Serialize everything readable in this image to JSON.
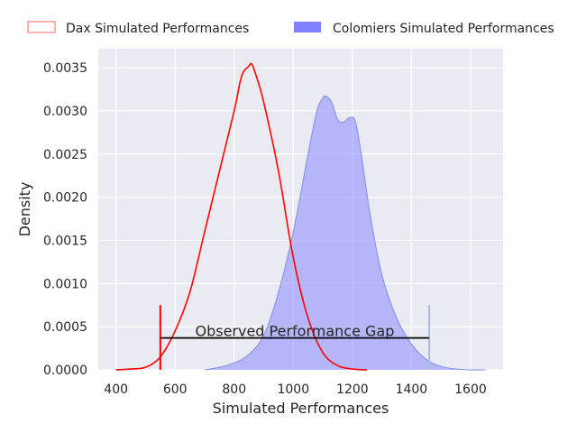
{
  "chart_data": {
    "type": "area",
    "xlabel": "Simulated Performances",
    "ylabel": "Density",
    "xlim": [
      340,
      1710
    ],
    "ylim": [
      0,
      0.00372
    ],
    "x_ticks": [
      400,
      600,
      800,
      1000,
      1200,
      1400,
      1600
    ],
    "x_tick_labels": [
      "400",
      "600",
      "800",
      "1000",
      "1200",
      "1400",
      "1600"
    ],
    "y_ticks": [
      0,
      0.0005,
      0.001,
      0.0015,
      0.002,
      0.0025,
      0.003,
      0.0035
    ],
    "y_tick_labels": [
      "0.0000",
      "0.0005",
      "0.0010",
      "0.0015",
      "0.0020",
      "0.0025",
      "0.0030",
      "0.0035"
    ],
    "grid": true,
    "legend_position": "top",
    "series": [
      {
        "name": "Dax Simulated Performances",
        "color": "#ff0000",
        "style": "outline",
        "x": [
          400,
          450,
          500,
          550,
          600,
          650,
          700,
          750,
          800,
          825,
          850,
          860,
          875,
          900,
          950,
          1000,
          1050,
          1100,
          1150,
          1200,
          1250
        ],
        "y": [
          0.0,
          1e-05,
          3e-05,
          0.00015,
          0.00045,
          0.0009,
          0.0016,
          0.0023,
          0.003,
          0.0034,
          0.00352,
          0.00354,
          0.0034,
          0.0031,
          0.0023,
          0.0013,
          0.0006,
          0.0002,
          5e-05,
          1e-05,
          0.0
        ]
      },
      {
        "name": "Colomiers Simulated Performances",
        "color": "#8080ff",
        "style": "filled",
        "x": [
          700,
          750,
          800,
          850,
          900,
          950,
          1000,
          1050,
          1080,
          1100,
          1110,
          1130,
          1150,
          1170,
          1190,
          1210,
          1230,
          1260,
          1300,
          1350,
          1400,
          1450,
          1500,
          1550,
          1600,
          1650
        ],
        "y": [
          0.0,
          3e-05,
          8e-05,
          0.00018,
          0.0004,
          0.0009,
          0.0016,
          0.0025,
          0.003,
          0.00315,
          0.00317,
          0.0031,
          0.0029,
          0.00287,
          0.00292,
          0.00288,
          0.0025,
          0.0018,
          0.0011,
          0.0006,
          0.0003,
          0.00012,
          4e-05,
          1e-05,
          0.0,
          0.0
        ]
      }
    ],
    "markers": [
      {
        "x": 550,
        "y_top": 0.00075,
        "color": "#ff0000"
      },
      {
        "x": 1460,
        "y_top": 0.00075,
        "color": "#a9bddf"
      }
    ],
    "gap_line": {
      "x1": 550,
      "x2": 1460,
      "y": 0.00037,
      "color": "#000000"
    },
    "annotation": {
      "text": "Observed Performance Gap",
      "x": 1005,
      "y": 0.00037
    }
  }
}
